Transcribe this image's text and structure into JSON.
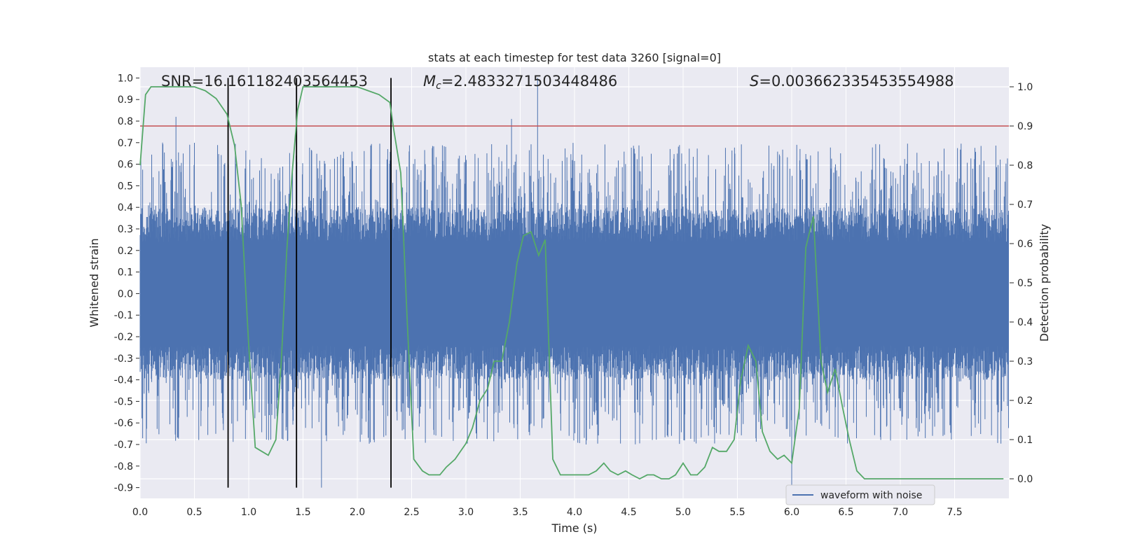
{
  "chart_data": {
    "type": "line",
    "title": "stats at each timestep for test data 3260 [signal=0]",
    "xlabel": "Time (s)",
    "ylabel": "Whitened strain",
    "ylabel_right": "Detection probability",
    "xlim": [
      0.0,
      8.0
    ],
    "ylim": [
      -0.95,
      1.05
    ],
    "ylim_right": [
      -0.05,
      1.05
    ],
    "x_ticks": [
      "0.0",
      "0.5",
      "1.0",
      "1.5",
      "2.0",
      "2.5",
      "3.0",
      "3.5",
      "4.0",
      "4.5",
      "5.0",
      "5.5",
      "6.0",
      "6.5",
      "7.0",
      "7.5"
    ],
    "x_tick_values": [
      0.0,
      0.5,
      1.0,
      1.5,
      2.0,
      2.5,
      3.0,
      3.5,
      4.0,
      4.5,
      5.0,
      5.5,
      6.0,
      6.5,
      7.0,
      7.5
    ],
    "y_ticks": [
      "1.0",
      "0.9",
      "0.8",
      "0.7",
      "0.6",
      "0.5",
      "0.4",
      "0.3",
      "0.2",
      "0.1",
      "0.0",
      "-0.1",
      "-0.2",
      "-0.3",
      "-0.4",
      "-0.5",
      "-0.6",
      "-0.7",
      "-0.8",
      "-0.9"
    ],
    "y_tick_values": [
      1.0,
      0.9,
      0.8,
      0.7,
      0.6,
      0.5,
      0.4,
      0.3,
      0.2,
      0.1,
      0.0,
      -0.1,
      -0.2,
      -0.3,
      -0.4,
      -0.5,
      -0.6,
      -0.7,
      -0.8,
      -0.9
    ],
    "y_right_ticks": [
      "1.0",
      "0.9",
      "0.8",
      "0.7",
      "0.6",
      "0.5",
      "0.4",
      "0.3",
      "0.2",
      "0.1",
      "0.0"
    ],
    "y_right_tick_values": [
      1.0,
      0.9,
      0.8,
      0.7,
      0.6,
      0.5,
      0.4,
      0.3,
      0.2,
      0.1,
      0.0
    ],
    "annotations": {
      "snr": "SNR=16.161182403564453",
      "mc_symbol": "M",
      "mc_subscript": "c",
      "mc_value": "=2.4833271503448486",
      "s_symbol": "S",
      "s_value": "=0.003662335453554988"
    },
    "threshold_right": 0.9,
    "vertical_lines_x": [
      0.81,
      1.44,
      2.31
    ],
    "vertical_lines_yrange": [
      -0.9,
      1.0
    ],
    "legend": {
      "label": "waveform with noise",
      "placement": "lower right"
    },
    "grid": true,
    "colors": {
      "background": "#eaeaf2",
      "grid": "#ffffff",
      "waveform": "#4c72b0",
      "probability": "#55a868",
      "threshold": "#c44e52",
      "vlines": "#000000"
    },
    "series": [
      {
        "name": "waveform with noise",
        "axis": "left",
        "kind": "noise",
        "core_amplitude": 0.4,
        "spike_max": 1.0,
        "spike_min": -0.9,
        "notable_peaks": [
          [
            0.33,
            0.82
          ],
          [
            3.42,
            0.81
          ],
          [
            3.66,
            1.0
          ],
          [
            6.0,
            -0.9
          ],
          [
            1.67,
            -0.9
          ]
        ]
      },
      {
        "name": "",
        "axis": "right",
        "x": [
          0.0,
          0.05,
          0.1,
          0.2,
          0.3,
          0.4,
          0.5,
          0.6,
          0.7,
          0.8,
          0.87,
          0.93,
          1.0,
          1.06,
          1.12,
          1.18,
          1.25,
          1.3,
          1.35,
          1.4,
          1.45,
          1.5,
          1.6,
          1.7,
          1.8,
          1.9,
          2.0,
          2.1,
          2.2,
          2.3,
          2.33,
          2.4,
          2.46,
          2.52,
          2.6,
          2.66,
          2.71,
          2.76,
          2.82,
          2.9,
          2.95,
          3.0,
          3.06,
          3.13,
          3.2,
          3.26,
          3.33,
          3.4,
          3.47,
          3.53,
          3.6,
          3.67,
          3.73,
          3.8,
          3.87,
          3.93,
          4.0,
          4.07,
          4.13,
          4.2,
          4.27,
          4.33,
          4.4,
          4.47,
          4.53,
          4.6,
          4.67,
          4.73,
          4.8,
          4.87,
          4.93,
          5.0,
          5.07,
          5.13,
          5.2,
          5.27,
          5.33,
          5.4,
          5.47,
          5.53,
          5.6,
          5.67,
          5.73,
          5.8,
          5.87,
          5.93,
          6.0,
          6.07,
          6.13,
          6.2,
          6.27,
          6.33,
          6.4,
          6.47,
          6.53,
          6.6,
          6.67,
          6.8,
          7.0,
          7.2,
          7.4,
          7.6,
          7.8,
          7.95
        ],
        "values": [
          0.8,
          0.98,
          1.0,
          1.0,
          1.0,
          1.0,
          1.0,
          0.99,
          0.97,
          0.93,
          0.85,
          0.7,
          0.34,
          0.08,
          0.07,
          0.06,
          0.1,
          0.3,
          0.58,
          0.78,
          0.94,
          1.0,
          1.0,
          1.0,
          1.0,
          1.0,
          1.0,
          0.99,
          0.98,
          0.96,
          0.9,
          0.78,
          0.4,
          0.05,
          0.02,
          0.01,
          0.01,
          0.01,
          0.03,
          0.05,
          0.07,
          0.09,
          0.13,
          0.2,
          0.23,
          0.3,
          0.3,
          0.4,
          0.55,
          0.62,
          0.63,
          0.57,
          0.61,
          0.05,
          0.01,
          0.01,
          0.01,
          0.01,
          0.01,
          0.02,
          0.04,
          0.02,
          0.01,
          0.02,
          0.01,
          0.0,
          0.01,
          0.01,
          0.0,
          0.0,
          0.01,
          0.04,
          0.01,
          0.01,
          0.03,
          0.08,
          0.07,
          0.07,
          0.1,
          0.25,
          0.34,
          0.3,
          0.12,
          0.07,
          0.05,
          0.06,
          0.04,
          0.18,
          0.59,
          0.67,
          0.3,
          0.22,
          0.28,
          0.18,
          0.1,
          0.02,
          0.0,
          0.0,
          0.0,
          0.0,
          0.0,
          0.0,
          0.0,
          0.0
        ]
      }
    ]
  }
}
